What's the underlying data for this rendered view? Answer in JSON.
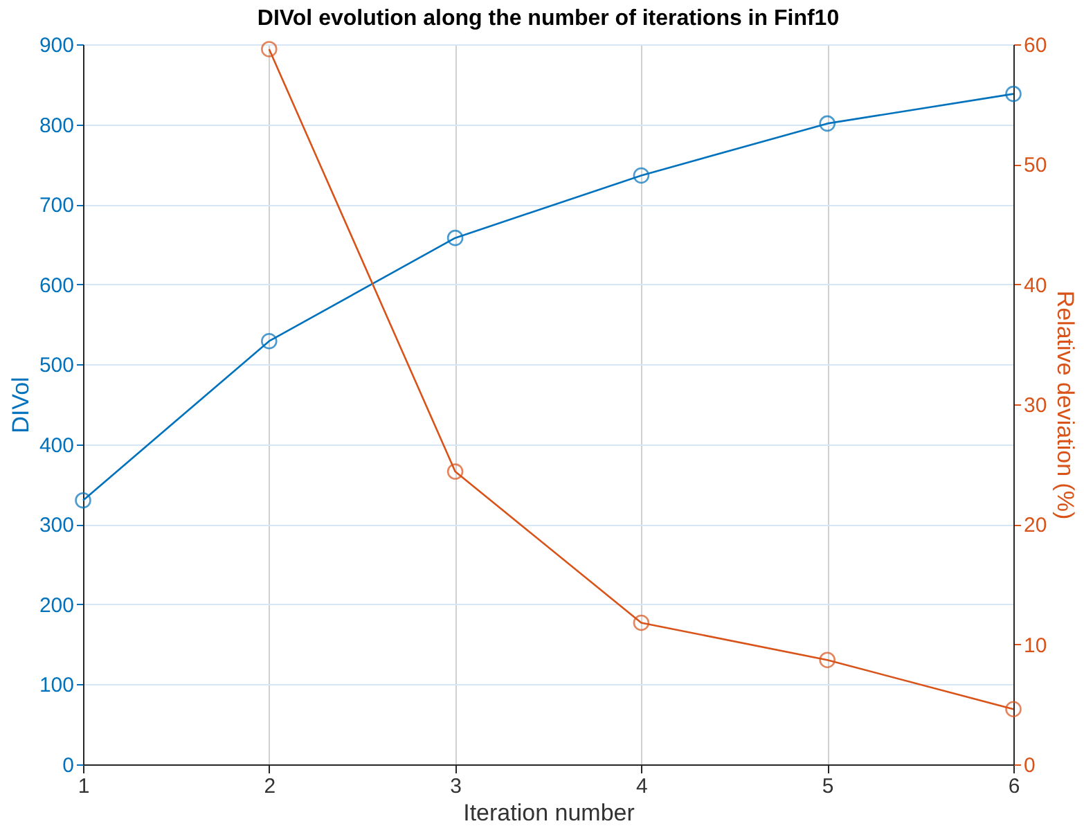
{
  "chart_data": {
    "type": "line",
    "title": "DIVol evolution along the number of iterations in Finf10",
    "xlabel": "Iteration number",
    "ylabel": "DIVol",
    "y2label": "Relative deviation (%)",
    "x": [
      1,
      2,
      3,
      4,
      5,
      6
    ],
    "xlim": [
      1,
      6
    ],
    "xticks": [
      1,
      2,
      3,
      4,
      5,
      6
    ],
    "ylim": [
      0,
      900
    ],
    "yticks": [
      0,
      100,
      200,
      300,
      400,
      500,
      600,
      700,
      800,
      900
    ],
    "y2lim": [
      0,
      60
    ],
    "y2ticks": [
      0,
      10,
      20,
      30,
      40,
      50,
      60
    ],
    "series": [
      {
        "color": "#0072bd",
        "values": [
          330,
          529,
          658,
          736,
          801,
          838
        ]
      },
      {
        "color": "#d95319",
        "axis": "y2",
        "values": [
          null,
          59.6,
          24.4,
          11.8,
          8.7,
          4.6
        ]
      }
    ],
    "grid": true,
    "marker": "circle",
    "line_style": "solid"
  }
}
